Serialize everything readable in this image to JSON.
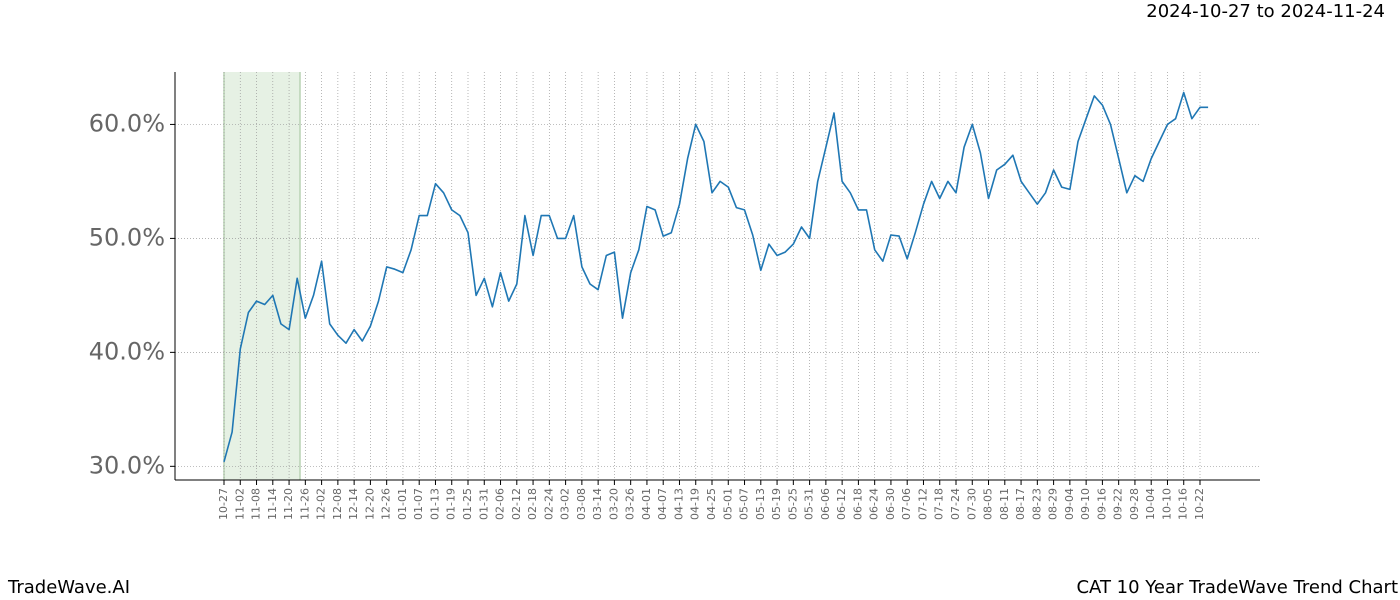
{
  "chart_data": {
    "type": "line",
    "title": "CAT 10 Year TradeWave Trend Chart",
    "subtitle": "2024-10-27 to 2024-11-24",
    "watermark": "TradeWave.AI",
    "categories": [
      "10-27",
      null,
      "11-02",
      null,
      "11-08",
      null,
      "11-14",
      null,
      "11-20",
      null,
      "11-26",
      null,
      "12-02",
      null,
      "12-08",
      null,
      "12-14",
      null,
      "12-20",
      null,
      "12-26",
      null,
      "01-01",
      null,
      "01-07",
      null,
      "01-13",
      null,
      "01-19",
      null,
      "01-25",
      null,
      "01-31",
      null,
      "02-06",
      null,
      "02-12",
      null,
      "02-18",
      null,
      "02-24",
      null,
      "03-02",
      null,
      "03-08",
      null,
      "03-14",
      null,
      "03-20",
      null,
      "03-26",
      null,
      "04-01",
      null,
      "04-07",
      null,
      "04-13",
      null,
      "04-19",
      null,
      "04-25",
      null,
      "05-01",
      null,
      "05-07",
      null,
      "05-13",
      null,
      "05-19",
      null,
      "05-25",
      null,
      "05-31",
      null,
      "06-06",
      null,
      "06-12",
      null,
      "06-18",
      null,
      "06-24",
      null,
      "06-30",
      null,
      "07-06",
      null,
      "07-12",
      null,
      "07-18",
      null,
      "07-24",
      null,
      "07-30",
      null,
      "08-05",
      null,
      "08-11",
      null,
      "08-17",
      null,
      "08-23",
      null,
      "08-29",
      null,
      "09-04",
      null,
      "09-10",
      null,
      "09-16",
      null,
      "09-22",
      null,
      "09-28",
      null,
      "10-04",
      null,
      "10-10",
      null,
      "10-16",
      null,
      "10-22",
      null
    ],
    "series": [
      {
        "color": "#1f77b4",
        "values": [
          30.4,
          33,
          40.3,
          43.5,
          44.5,
          44.2,
          45,
          42.5,
          42,
          46.5,
          43,
          45,
          48,
          42.5,
          41.5,
          40.8,
          42,
          41,
          42.3,
          44.5,
          47.5,
          47.3,
          47,
          49,
          52,
          52,
          54.8,
          54,
          52.5,
          52,
          50.5,
          45,
          46.5,
          44,
          47,
          44.5,
          46,
          52,
          48.5,
          52,
          52,
          50,
          50,
          52,
          47.5,
          46,
          45.5,
          48.5,
          48.8,
          43,
          47,
          49,
          52.8,
          52.5,
          50.2,
          50.5,
          53,
          57,
          60,
          58.5,
          54,
          55,
          54.5,
          52.7,
          52.5,
          50.3,
          47.2,
          49.5,
          48.5,
          48.8,
          49.5,
          51,
          50,
          55,
          58,
          61,
          55,
          54,
          52.5,
          52.5,
          49,
          48,
          50.3,
          50.2,
          48.2,
          50.5,
          53,
          55,
          53.5,
          55,
          54,
          58,
          60,
          57.5,
          53.5,
          56,
          56.5,
          57.3,
          55,
          54,
          53,
          54,
          56,
          54.5,
          54.3,
          58.5,
          60.5,
          62.5,
          61.7,
          60,
          57,
          54,
          55.5,
          55,
          57,
          58.5,
          60,
          60.5,
          62.8,
          60.5,
          61.5,
          61.5
        ]
      }
    ],
    "ylim": [
      28.8,
      64.6
    ],
    "yticks": [
      {
        "value": 30,
        "label": "30.0%"
      },
      {
        "value": 40,
        "label": "40.0%"
      },
      {
        "value": 50,
        "label": "50.0%"
      },
      {
        "value": 60,
        "label": "60.0%"
      }
    ],
    "grid": true
  }
}
